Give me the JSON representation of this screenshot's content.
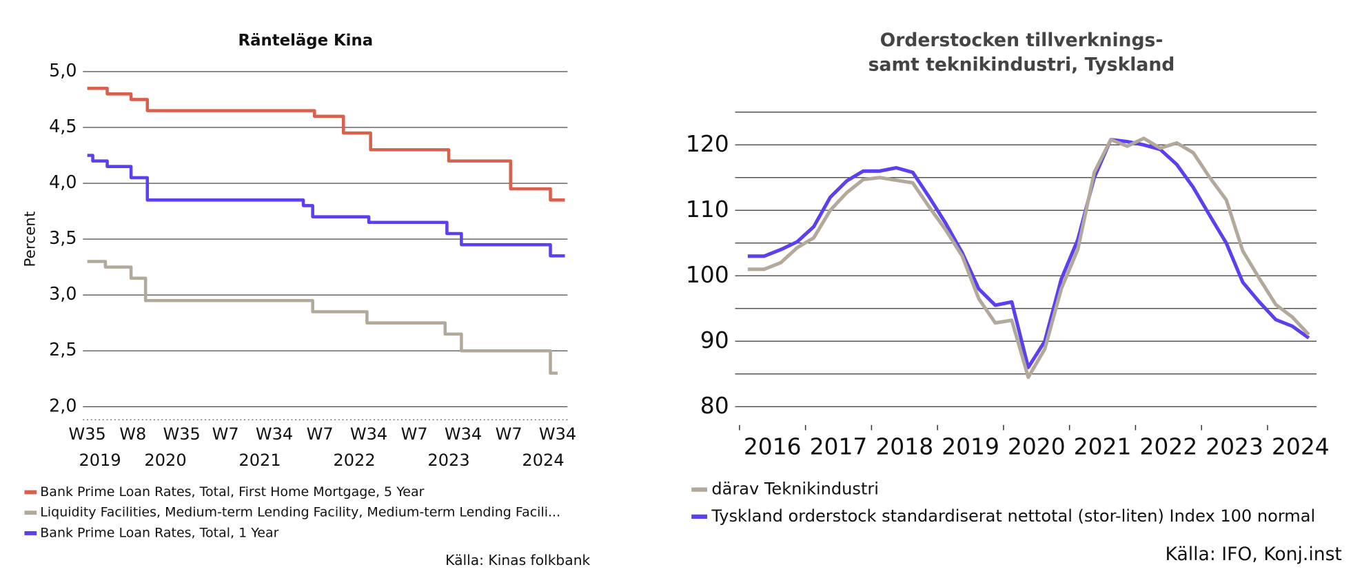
{
  "chart_data": [
    {
      "type": "line",
      "step": true,
      "title": "Ränteläge Kina",
      "y_label": "Percent",
      "source": "Källa: Kinas folkbank",
      "xlim": [
        "2019-W35",
        "2024-W38"
      ],
      "xticks": [
        {
          "value": "2019-W35",
          "label": "W35"
        },
        {
          "value": "2020-W8",
          "label": "W8"
        },
        {
          "value": "2020-W35",
          "label": "W35"
        },
        {
          "value": "2021-W7",
          "label": "W7"
        },
        {
          "value": "2021-W34",
          "label": "W34"
        },
        {
          "value": "2022-W7",
          "label": "W7"
        },
        {
          "value": "2022-W34",
          "label": "W34"
        },
        {
          "value": "2023-W7",
          "label": "W7"
        },
        {
          "value": "2023-W34",
          "label": "W34"
        },
        {
          "value": "2024-W7",
          "label": "W7"
        },
        {
          "value": "2024-W34",
          "label": "W34"
        }
      ],
      "year_ticks": [
        {
          "value": "2019-W42",
          "label": "2019"
        },
        {
          "value": "2020-W26",
          "label": "2020"
        },
        {
          "value": "2021-W26",
          "label": "2021"
        },
        {
          "value": "2022-W26",
          "label": "2022"
        },
        {
          "value": "2023-W26",
          "label": "2023"
        },
        {
          "value": "2024-W26",
          "label": "2024"
        }
      ],
      "ylim": [
        2,
        5
      ],
      "yticks": [
        {
          "value": 2,
          "label": "2,0"
        },
        {
          "value": 2.5,
          "label": "2,5"
        },
        {
          "value": 3,
          "label": "3,0"
        },
        {
          "value": 3.5,
          "label": "3,5"
        },
        {
          "value": 4,
          "label": "4,0"
        },
        {
          "value": 4.5,
          "label": "4,5"
        },
        {
          "value": 5,
          "label": "5,0"
        }
      ],
      "grid": true,
      "series": [
        {
          "name": "Bank Prime Loan Rates, Total, First Home Mortgage, 5 Year",
          "color": "#d9604c",
          "x": [
            "2019-W35",
            "2019-W46",
            "2020-W7",
            "2020-W16",
            "2022-W4",
            "2022-W20",
            "2022-W35",
            "2023-W26",
            "2024-W8",
            "2024-W30",
            "2024-W38"
          ],
          "values": [
            4.85,
            4.8,
            4.75,
            4.65,
            4.6,
            4.45,
            4.3,
            4.2,
            3.95,
            3.85,
            3.85
          ]
        },
        {
          "name": "Liquidity Facilities, Medium-term Lending Facility, Medium-term Lending Facili...",
          "color": "#b3a99a",
          "x": [
            "2019-W35",
            "2019-W45",
            "2020-W7",
            "2020-W15",
            "2022-W3",
            "2022-W33",
            "2023-W24",
            "2023-W33",
            "2024-W30",
            "2024-W34"
          ],
          "values": [
            3.3,
            3.25,
            3.15,
            2.95,
            2.85,
            2.75,
            2.65,
            2.5,
            2.3,
            2.3
          ]
        },
        {
          "name": "Bank Prime Loan Rates, Total, 1 Year",
          "color": "#5b3ff0",
          "x": [
            "2019-W35",
            "2019-W38",
            "2019-W46",
            "2020-W7",
            "2020-W16",
            "2021-W50",
            "2022-W3",
            "2022-W34",
            "2023-W25",
            "2023-W33",
            "2024-W30",
            "2024-W38"
          ],
          "values": [
            4.25,
            4.2,
            4.15,
            4.05,
            3.85,
            3.8,
            3.7,
            3.65,
            3.55,
            3.45,
            3.35,
            3.35
          ]
        }
      ]
    },
    {
      "type": "line",
      "title": [
        "Orderstocken tillverknings-",
        "samt teknikindustri, Tyskland"
      ],
      "source": "Källa: IFO, Konj.inst",
      "xlim": [
        2016,
        2024.75
      ],
      "xticks": [
        {
          "value": 2016.5,
          "label": "2016"
        },
        {
          "value": 2017.5,
          "label": "2017"
        },
        {
          "value": 2018.5,
          "label": "2018"
        },
        {
          "value": 2019.5,
          "label": "2019"
        },
        {
          "value": 2020.5,
          "label": "2020"
        },
        {
          "value": 2021.5,
          "label": "2021"
        },
        {
          "value": 2022.5,
          "label": "2022"
        },
        {
          "value": 2023.5,
          "label": "2023"
        },
        {
          "value": 2024.5,
          "label": "2024"
        }
      ],
      "x_minor_ticks": [
        2016,
        2017,
        2018,
        2019,
        2020,
        2021,
        2022,
        2023,
        2024
      ],
      "ylim": [
        80,
        125
      ],
      "yticks": [
        80,
        90,
        100,
        110,
        120
      ],
      "y_minor_grid": [
        85,
        95,
        105,
        115,
        125
      ],
      "grid": true,
      "x": [
        2016.125,
        2016.375,
        2016.625,
        2016.875,
        2017.125,
        2017.375,
        2017.625,
        2017.875,
        2018.125,
        2018.375,
        2018.625,
        2018.875,
        2019.125,
        2019.375,
        2019.625,
        2019.875,
        2020.125,
        2020.375,
        2020.625,
        2020.875,
        2021.125,
        2021.375,
        2021.625,
        2021.875,
        2022.125,
        2022.375,
        2022.625,
        2022.875,
        2023.125,
        2023.375,
        2023.625,
        2023.875,
        2024.125,
        2024.375,
        2024.625
      ],
      "series": [
        {
          "name": "därav Teknikindustri",
          "color": "#b3a99a",
          "values": [
            101,
            101,
            102,
            104.3,
            105.8,
            110,
            112.7,
            114.7,
            115,
            114.6,
            114.2,
            110.5,
            107,
            103,
            96.5,
            92.8,
            93.2,
            84.5,
            88.8,
            98,
            104,
            115.8,
            120.8,
            119.8,
            121,
            119.5,
            120.3,
            118.8,
            115,
            111.6,
            103.8,
            99.6,
            95.6,
            93.7,
            91
          ]
        },
        {
          "name": "Tyskland orderstock standardiserat nettotal (stor-liten) Index 100 normal",
          "color": "#5b3ff0",
          "values": [
            103,
            103,
            104,
            105.2,
            107.5,
            112,
            114.5,
            116,
            116,
            116.5,
            115.8,
            112,
            108,
            103.5,
            98,
            95.5,
            96,
            86,
            90,
            99.5,
            105.5,
            115,
            120.8,
            120.5,
            120,
            119.3,
            117,
            113.5,
            109.2,
            105,
            99,
            96,
            93.3,
            92.3,
            90.5
          ]
        }
      ]
    }
  ]
}
